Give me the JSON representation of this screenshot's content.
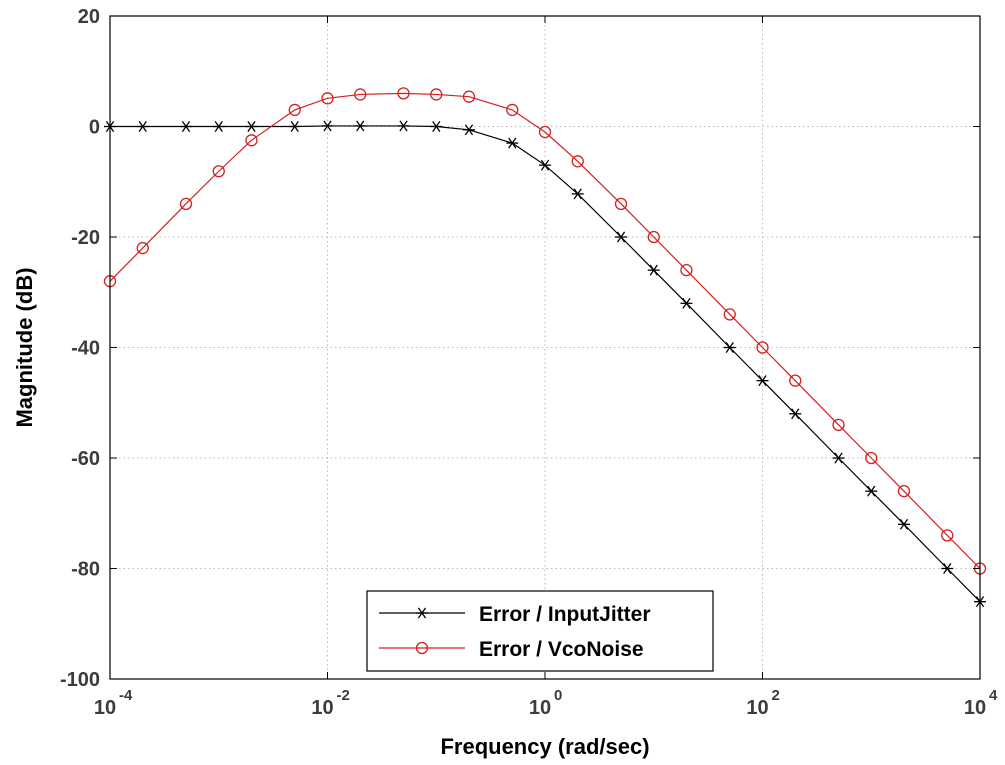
{
  "chart_data": {
    "type": "line",
    "title": "",
    "xlabel": "Frequency   (rad/sec)",
    "ylabel": "Magnitude  (dB)",
    "xscale": "log",
    "xlim": [
      0.0001,
      10000
    ],
    "ylim": [
      -100,
      20
    ],
    "grid": true,
    "legend_position": "bottom-center",
    "x_ticks": [
      {
        "value": 0.0001,
        "base": "10",
        "exp": "-4"
      },
      {
        "value": 0.01,
        "base": "10",
        "exp": "-2"
      },
      {
        "value": 1,
        "base": "10",
        "exp": "0"
      },
      {
        "value": 100,
        "base": "10",
        "exp": "2"
      },
      {
        "value": 10000,
        "base": "10",
        "exp": "4"
      }
    ],
    "y_ticks": [
      {
        "value": 20,
        "label": "20"
      },
      {
        "value": 0,
        "label": "0"
      },
      {
        "value": -20,
        "label": "-20"
      },
      {
        "value": -40,
        "label": "-40"
      },
      {
        "value": -60,
        "label": "-60"
      },
      {
        "value": -80,
        "label": "-80"
      },
      {
        "value": -100,
        "label": "-100"
      }
    ],
    "series": [
      {
        "name": "Error / InputJitter",
        "color": "#000000",
        "marker": "asterisk",
        "x": [
          0.0001,
          0.0002,
          0.0005,
          0.001,
          0.002,
          0.005,
          0.01,
          0.02,
          0.05,
          0.1,
          0.2,
          0.5,
          1,
          2,
          5,
          10,
          20,
          50,
          100,
          200,
          500,
          1000,
          2000,
          5000,
          10000
        ],
        "y": [
          0,
          0,
          0,
          0,
          0,
          0,
          0.1,
          0.1,
          0.1,
          0,
          -0.6,
          -3,
          -7,
          -12.2,
          -20,
          -26,
          -32,
          -40,
          -46,
          -52,
          -60,
          -66,
          -72,
          -80,
          -86
        ]
      },
      {
        "name": "Error / VcoNoise",
        "color": "#d42020",
        "marker": "circle",
        "x": [
          0.0001,
          0.0002,
          0.0005,
          0.001,
          0.002,
          0.005,
          0.01,
          0.02,
          0.05,
          0.1,
          0.2,
          0.5,
          1,
          2,
          5,
          10,
          20,
          50,
          100,
          200,
          500,
          1000,
          2000,
          5000,
          10000
        ],
        "y": [
          -28,
          -22,
          -14,
          -8.1,
          -2.5,
          3,
          5.1,
          5.8,
          6,
          5.8,
          5.4,
          3,
          -1,
          -6.3,
          -14,
          -20,
          -26,
          -34,
          -40,
          -46,
          -54,
          -60,
          -66,
          -74,
          -80
        ]
      }
    ]
  }
}
